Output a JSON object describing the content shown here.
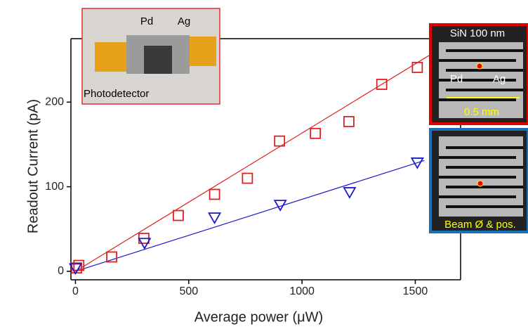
{
  "chart_data": {
    "type": "scatter",
    "x_label": "Average power (μW)",
    "y_label": "Readout Current  (pA)",
    "xlim": [
      -20,
      1700
    ],
    "ylim": [
      -10,
      275
    ],
    "xticks": [
      0,
      500,
      1000,
      1500
    ],
    "yticks": [
      0,
      100,
      200
    ],
    "series": [
      {
        "color": "#e02020",
        "marker": "square",
        "x": [
          5,
          15,
          160,
          302,
          454,
          614,
          759,
          901,
          1059,
          1207,
          1352,
          1509
        ],
        "values": [
          4,
          7,
          17,
          39,
          66,
          91,
          110,
          154,
          163,
          177,
          221,
          241
        ]
      },
      {
        "color": "#1a1acc",
        "marker": "triangle-down",
        "x": [
          0,
          305,
          614,
          904,
          1210,
          1509
        ],
        "values": [
          3,
          33,
          63,
          78,
          93,
          128
        ]
      }
    ],
    "fits": [
      {
        "color": "#e02020",
        "x": [
          0,
          1560
        ],
        "values": [
          0,
          255
        ]
      },
      {
        "color": "#1a1acc",
        "x": [
          0,
          1540
        ],
        "values": [
          0,
          131
        ]
      }
    ]
  },
  "insets": {
    "photo": {
      "labels": [
        "Pd",
        "Ag"
      ],
      "caption": "Photodetector"
    },
    "sem_top": {
      "title": "SiN 100 nm",
      "labels": [
        "Pd",
        "Ag"
      ],
      "scale": "0.5 mm"
    },
    "sem_bottom": {
      "caption": "Beam Ø & pos."
    }
  }
}
